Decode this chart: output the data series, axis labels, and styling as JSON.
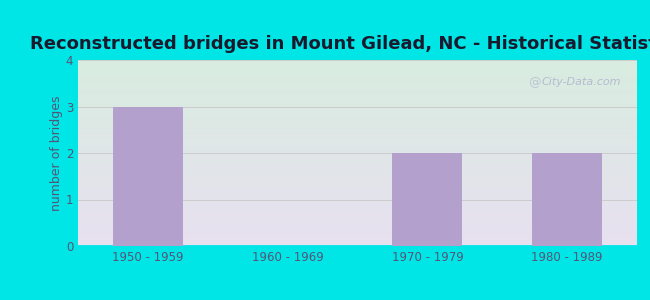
{
  "title": "Reconstructed bridges in Mount Gilead, NC - Historical Statistics",
  "categories": [
    "1950 - 1959",
    "1960 - 1969",
    "1970 - 1979",
    "1980 - 1989"
  ],
  "values": [
    3,
    0,
    2,
    2
  ],
  "bar_color": "#b3a0cc",
  "ylabel": "number of bridges",
  "ylim": [
    0,
    4
  ],
  "yticks": [
    0,
    1,
    2,
    3,
    4
  ],
  "background_outer": "#00e5e5",
  "grad_top_left": "#d8ede0",
  "grad_bottom_right": "#e8e0f0",
  "title_fontsize": 13,
  "title_color": "#1a1a2e",
  "ylabel_fontsize": 9,
  "ylabel_color": "#555577",
  "tick_label_color": "#555577",
  "grid_color": "#cccccc",
  "watermark_text": "City-Data.com",
  "bar_width": 0.5
}
